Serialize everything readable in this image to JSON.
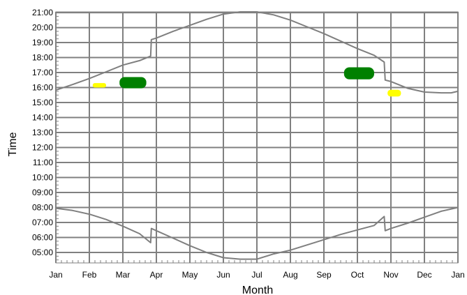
{
  "chart_data": {
    "type": "line",
    "xlabel": "Month",
    "ylabel": "Time",
    "x_ticks": [
      "Jan",
      "Feb",
      "Mar",
      "Apr",
      "May",
      "Jun",
      "Jul",
      "Aug",
      "Sep",
      "Oct",
      "Nov",
      "Dec",
      "Jan"
    ],
    "y_ticks": [
      "05:00",
      "06:00",
      "07:00",
      "08:00",
      "09:00",
      "10:00",
      "11:00",
      "12:00",
      "13:00",
      "14:00",
      "15:00",
      "16:00",
      "17:00",
      "18:00",
      "19:00",
      "20:00",
      "21:00"
    ],
    "xlim_months": [
      0,
      12
    ],
    "ylim_hours": [
      4.3,
      21.05
    ],
    "grid": true,
    "colors": {
      "line": "#7f7f7f",
      "grid": "#808080",
      "highlight_green": "#008000",
      "highlight_yellow": "#ffff00"
    },
    "series": [
      {
        "role": "upper-curve",
        "points": [
          [
            0.0,
            15.83
          ],
          [
            0.5,
            16.2
          ],
          [
            1.0,
            16.6
          ],
          [
            1.5,
            17.05
          ],
          [
            2.0,
            17.5
          ],
          [
            2.5,
            17.8
          ],
          [
            2.83,
            18.1
          ],
          [
            2.85,
            19.2
          ],
          [
            3.0,
            19.3
          ],
          [
            3.5,
            19.75
          ],
          [
            4.0,
            20.15
          ],
          [
            4.5,
            20.55
          ],
          [
            5.0,
            20.9
          ],
          [
            5.5,
            21.05
          ],
          [
            6.0,
            21.05
          ],
          [
            6.5,
            20.85
          ],
          [
            7.0,
            20.5
          ],
          [
            7.5,
            20.05
          ],
          [
            8.0,
            19.6
          ],
          [
            8.5,
            19.1
          ],
          [
            9.0,
            18.6
          ],
          [
            9.5,
            18.15
          ],
          [
            9.8,
            17.7
          ],
          [
            9.83,
            16.5
          ],
          [
            10.0,
            16.4
          ],
          [
            10.5,
            15.95
          ],
          [
            11.0,
            15.7
          ],
          [
            11.5,
            15.65
          ],
          [
            11.8,
            15.65
          ],
          [
            12.0,
            15.75
          ]
        ]
      },
      {
        "role": "lower-curve",
        "points": [
          [
            0.0,
            7.95
          ],
          [
            0.5,
            7.8
          ],
          [
            1.0,
            7.55
          ],
          [
            1.5,
            7.2
          ],
          [
            2.0,
            6.75
          ],
          [
            2.5,
            6.25
          ],
          [
            2.83,
            5.65
          ],
          [
            2.85,
            6.6
          ],
          [
            3.0,
            6.45
          ],
          [
            3.5,
            5.95
          ],
          [
            4.0,
            5.45
          ],
          [
            4.5,
            5.0
          ],
          [
            5.0,
            4.65
          ],
          [
            5.5,
            4.55
          ],
          [
            6.0,
            4.55
          ],
          [
            6.5,
            4.9
          ],
          [
            7.0,
            5.15
          ],
          [
            7.5,
            5.5
          ],
          [
            8.0,
            5.85
          ],
          [
            8.5,
            6.2
          ],
          [
            9.0,
            6.5
          ],
          [
            9.5,
            6.8
          ],
          [
            9.8,
            7.4
          ],
          [
            9.83,
            6.45
          ],
          [
            10.0,
            6.6
          ],
          [
            10.5,
            6.95
          ],
          [
            11.0,
            7.35
          ],
          [
            11.5,
            7.75
          ],
          [
            12.0,
            8.0
          ]
        ]
      }
    ],
    "highlights": [
      {
        "color": "highlight_yellow",
        "x": [
          1.1,
          1.5
        ],
        "y": [
          16.0,
          16.3
        ]
      },
      {
        "color": "highlight_green",
        "x": [
          1.9,
          2.7
        ],
        "y": [
          15.95,
          16.7
        ]
      },
      {
        "color": "highlight_green",
        "x": [
          8.6,
          9.5
        ],
        "y": [
          16.55,
          17.35
        ]
      },
      {
        "color": "highlight_yellow",
        "x": [
          9.9,
          10.3
        ],
        "y": [
          15.4,
          15.85
        ]
      }
    ]
  }
}
